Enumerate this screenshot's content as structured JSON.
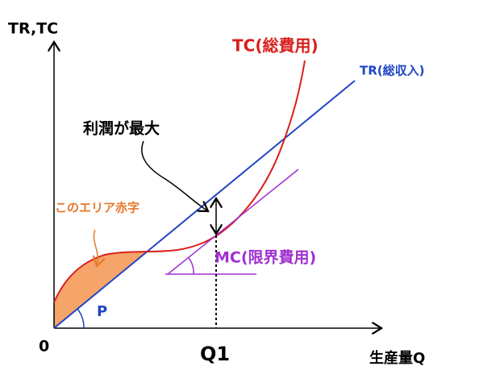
{
  "axes": {
    "y_label": "TR,TC",
    "x_label": "生産量Q",
    "origin": "0",
    "q1": "Q1"
  },
  "curves": {
    "tc": "TC(総費用)",
    "tr": "TR(総収入)",
    "mc": "MC(限界費用)"
  },
  "annotations": {
    "max_profit": "利潤が最大",
    "loss_area": "このエリア赤字",
    "angle": "P"
  }
}
